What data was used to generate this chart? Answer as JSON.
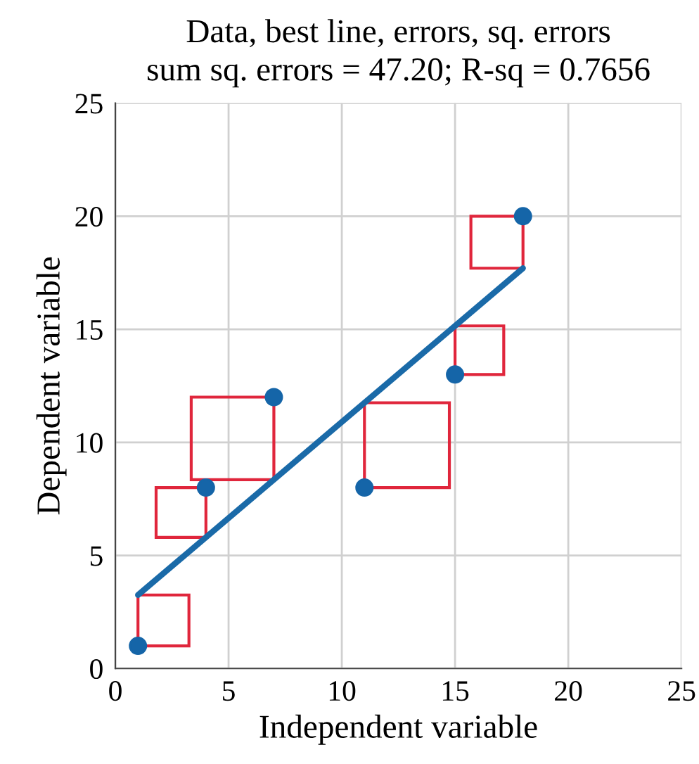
{
  "chart_data": {
    "type": "scatter",
    "title": "Data, best line, errors, sq. errors",
    "subtitle": "sum sq. errors = 47.20; R-sq = 0.7656",
    "xlabel": "Independent variable",
    "ylabel": "Dependent variable",
    "xlim": [
      0,
      25
    ],
    "ylim": [
      0,
      25
    ],
    "xticks": [
      0,
      5,
      10,
      15,
      20,
      25
    ],
    "yticks": [
      0,
      5,
      10,
      15,
      20,
      25
    ],
    "grid": true,
    "series": [
      {
        "color": "#1565a8",
        "marker": "circle",
        "x": [
          1,
          4,
          7,
          11,
          15,
          18
        ],
        "values": [
          1,
          8,
          12,
          8,
          13,
          20
        ]
      },
      {
        "type": "line",
        "color": "#1a6aa8",
        "marker": "none",
        "line_style": "solid",
        "x": [
          1,
          18
        ],
        "values": [
          3.25,
          17.7
        ]
      }
    ]
  }
}
